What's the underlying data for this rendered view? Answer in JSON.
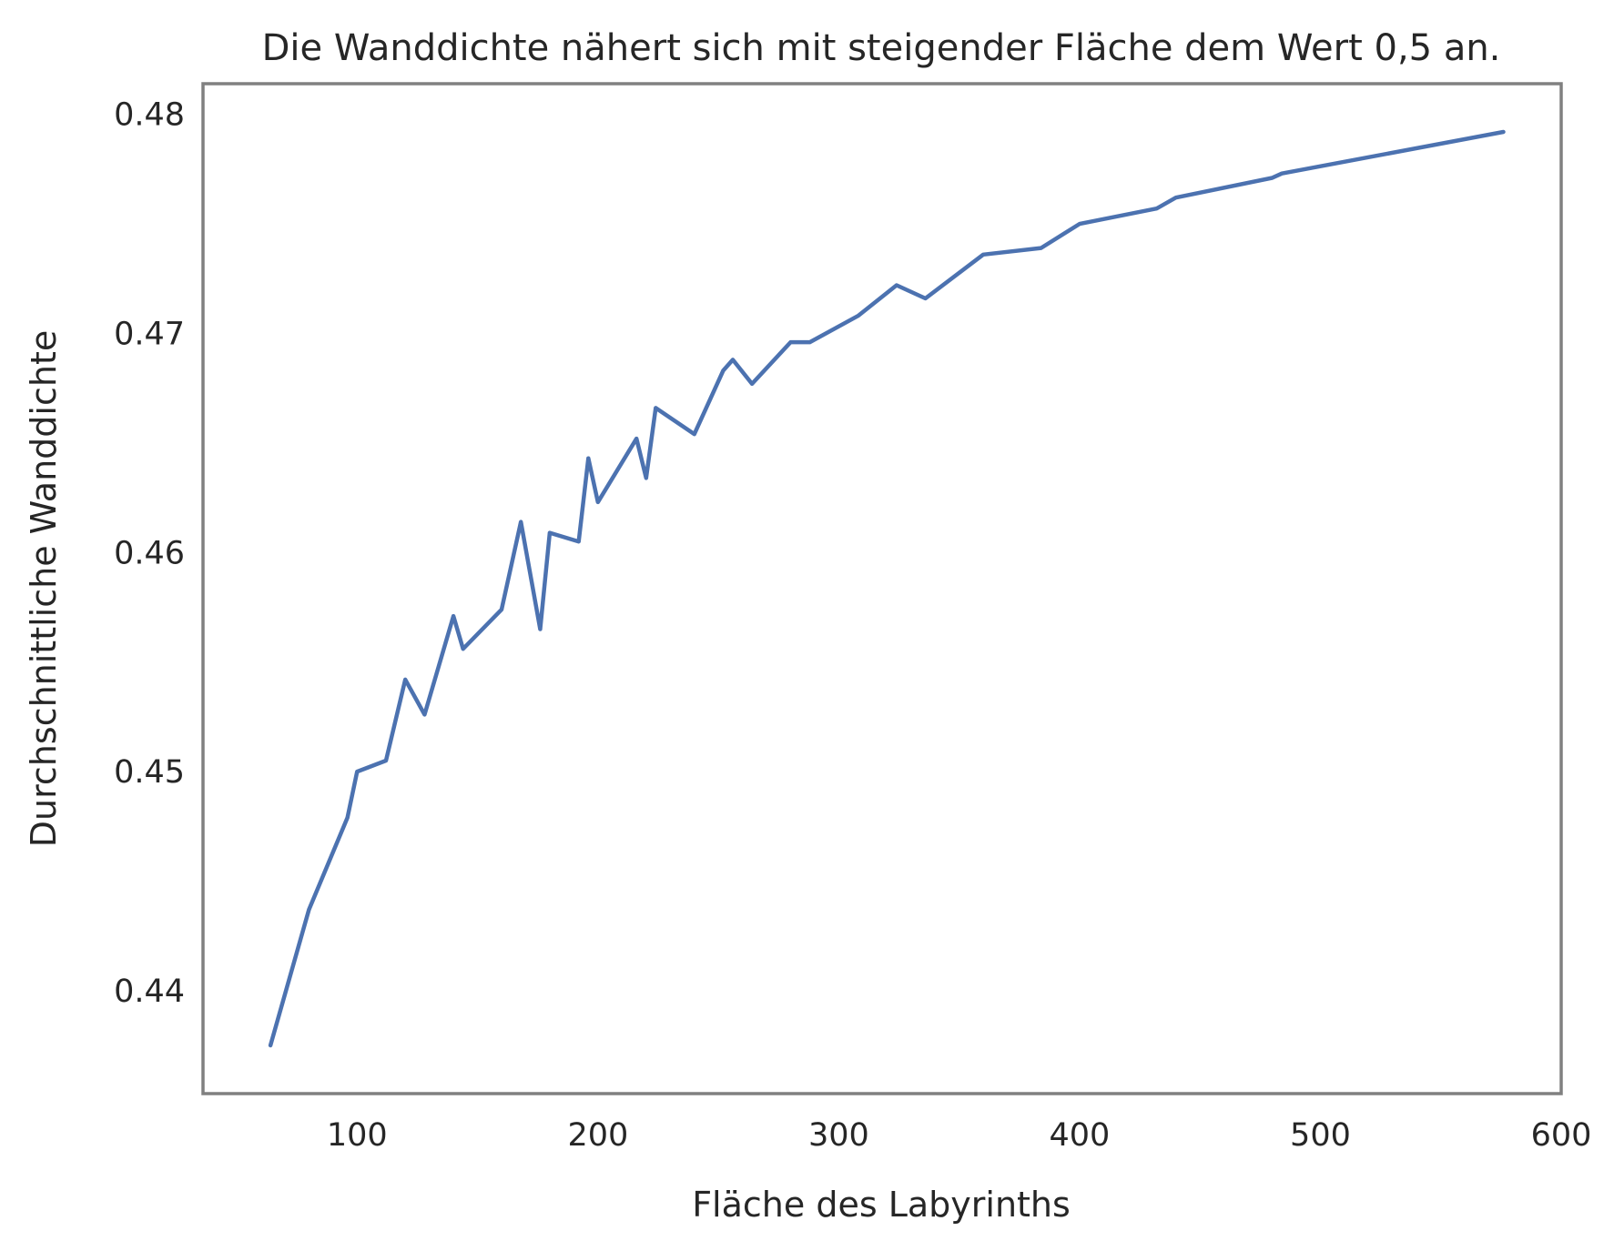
{
  "chart_data": {
    "type": "line",
    "title": "Die Wanddichte nähert sich mit steigender Fläche dem Wert 0,5 an.",
    "xlabel": "Fläche des Labyrinths",
    "ylabel": "Durchschnittliche Wanddichte",
    "xlim": [
      36,
      600
    ],
    "ylim": [
      0.4353,
      0.4814
    ],
    "x_ticks": [
      100,
      200,
      300,
      400,
      500,
      600
    ],
    "x_tick_labels": [
      "100",
      "200",
      "300",
      "400",
      "500",
      "600"
    ],
    "y_ticks": [
      0.44,
      0.45,
      0.46,
      0.47,
      0.48
    ],
    "y_tick_labels": [
      "0.44",
      "0.45",
      "0.46",
      "0.47",
      "0.48"
    ],
    "grid": false,
    "line_color": "#4c72b0",
    "frame_color": "#808080",
    "series": [
      {
        "x": [
          64,
          80,
          96,
          100,
          112,
          120,
          128,
          140,
          144,
          160,
          168,
          176,
          180,
          192,
          196,
          200,
          216,
          220,
          224,
          240,
          252,
          256,
          264,
          280,
          288,
          308,
          324,
          336,
          360,
          384,
          400,
          432,
          440,
          480,
          484,
          576
        ],
        "y": [
          0.4375,
          0.4437,
          0.4479,
          0.45,
          0.4505,
          0.4542,
          0.4526,
          0.4571,
          0.4556,
          0.4574,
          0.4614,
          0.4565,
          0.4609,
          0.4605,
          0.4643,
          0.4623,
          0.4652,
          0.4634,
          0.4666,
          0.4654,
          0.4683,
          0.4688,
          0.4677,
          0.4696,
          0.4696,
          0.4708,
          0.4722,
          0.4716,
          0.4736,
          0.4739,
          0.475,
          0.4757,
          0.4762,
          0.4771,
          0.4773,
          0.4792
        ]
      }
    ]
  }
}
